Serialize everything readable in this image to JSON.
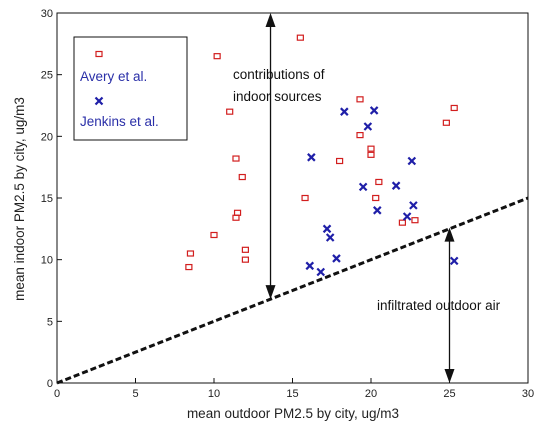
{
  "chart_data": {
    "type": "scatter",
    "xlabel": "mean outdoor PM2.5 by city, ug/m3",
    "ylabel": "mean indoor PM2.5 by city, ug/m3",
    "xlim": [
      0,
      30
    ],
    "ylim": [
      0,
      30
    ],
    "x_ticks": [
      0,
      5,
      10,
      15,
      20,
      25,
      30
    ],
    "y_ticks": [
      0,
      5,
      10,
      15,
      20,
      25,
      30
    ],
    "grid": false,
    "legend_position": "top-left",
    "series": [
      {
        "name": "Avery et al.",
        "marker": "open-square",
        "color": "#d21e1e",
        "points": [
          [
            10.2,
            26.5
          ],
          [
            11.0,
            22.0
          ],
          [
            11.4,
            18.2
          ],
          [
            11.8,
            16.7
          ],
          [
            11.5,
            13.8
          ],
          [
            11.4,
            13.4
          ],
          [
            12.0,
            10.8
          ],
          [
            12.0,
            10.0
          ],
          [
            10.0,
            12.0
          ],
          [
            8.5,
            10.5
          ],
          [
            8.4,
            9.4
          ],
          [
            15.5,
            28.0
          ],
          [
            15.8,
            15.0
          ],
          [
            18.0,
            18.0
          ],
          [
            19.3,
            23.0
          ],
          [
            19.3,
            20.1
          ],
          [
            20.0,
            19.0
          ],
          [
            20.0,
            18.5
          ],
          [
            20.5,
            16.3
          ],
          [
            20.3,
            15.0
          ],
          [
            22.8,
            13.2
          ],
          [
            22.0,
            13.0
          ],
          [
            24.8,
            21.1
          ],
          [
            25.3,
            22.3
          ]
        ]
      },
      {
        "name": "Jenkins et al.",
        "marker": "x-cross",
        "color": "#1f1fa8",
        "points": [
          [
            16.2,
            18.3
          ],
          [
            18.3,
            22.0
          ],
          [
            19.8,
            20.8
          ],
          [
            20.2,
            22.1
          ],
          [
            19.5,
            15.9
          ],
          [
            21.6,
            16.0
          ],
          [
            22.6,
            18.0
          ],
          [
            20.4,
            14.0
          ],
          [
            22.3,
            13.5
          ],
          [
            22.7,
            14.4
          ],
          [
            17.2,
            12.5
          ],
          [
            17.4,
            11.8
          ],
          [
            17.8,
            10.1
          ],
          [
            16.1,
            9.5
          ],
          [
            16.8,
            9.0
          ],
          [
            25.3,
            9.9
          ]
        ]
      }
    ],
    "reference_line": {
      "style": "dashed",
      "color": "#111111",
      "from": [
        0,
        0
      ],
      "to": [
        30,
        15
      ]
    },
    "annotations": [
      {
        "text_lines": [
          "contributions of",
          "indoor sources"
        ],
        "arrow": {
          "x": 13.6,
          "from_y": 30,
          "to_y": 6.8,
          "double": true
        }
      },
      {
        "text_lines": [
          "infiltrated outdoor air"
        ],
        "arrow": {
          "x": 25.0,
          "from_y": 0,
          "to_y": 12.6,
          "double": true
        }
      }
    ]
  }
}
